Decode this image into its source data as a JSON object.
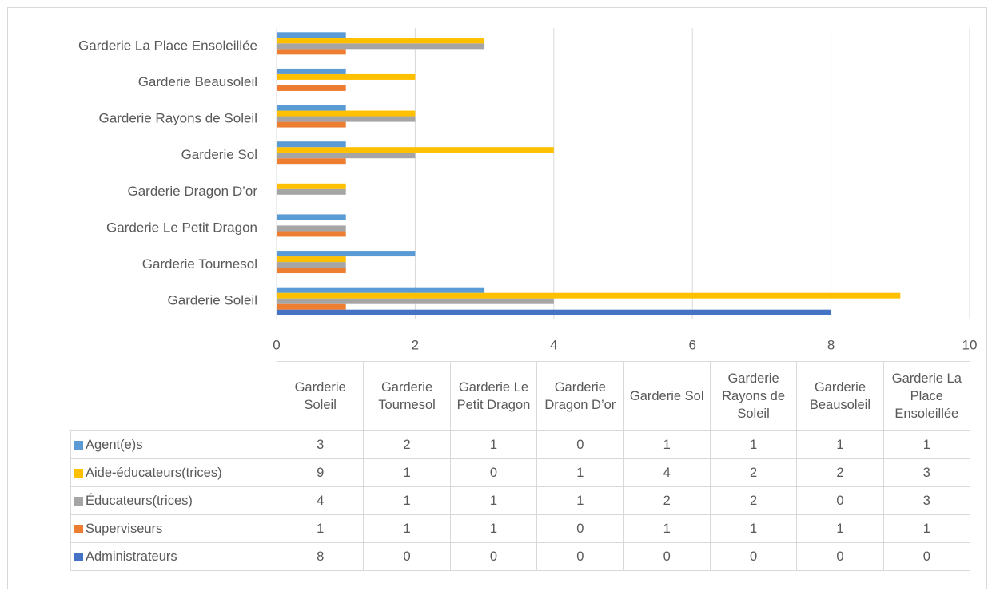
{
  "chart_data": {
    "type": "bar",
    "orientation": "horizontal",
    "categories": [
      "Garderie Soleil",
      "Garderie Tournesol",
      "Garderie Le Petit Dragon",
      "Garderie Dragon D’or",
      "Garderie Sol",
      "Garderie Rayons de Soleil",
      "Garderie Beausoleil",
      "Garderie La Place Ensoleillée"
    ],
    "series": [
      {
        "name": "Administrateurs",
        "color": "#4472c4",
        "values": [
          8,
          0,
          0,
          0,
          0,
          0,
          0,
          0
        ]
      },
      {
        "name": "Superviseurs",
        "color": "#ed7d31",
        "values": [
          1,
          1,
          1,
          0,
          1,
          1,
          1,
          1
        ]
      },
      {
        "name": "Éducateurs(trices)",
        "color": "#a5a5a5",
        "values": [
          4,
          1,
          1,
          1,
          2,
          2,
          0,
          3
        ]
      },
      {
        "name": "Aide-éducateurs(trices)",
        "color": "#ffc000",
        "values": [
          9,
          1,
          0,
          1,
          4,
          2,
          2,
          3
        ]
      },
      {
        "name": "Agent(e)s",
        "color": "#5b9bd5",
        "values": [
          3,
          2,
          1,
          0,
          1,
          1,
          1,
          1
        ]
      }
    ],
    "xlim": [
      0,
      10
    ],
    "xticks": [
      0,
      2,
      4,
      6,
      8,
      10
    ],
    "grid": true,
    "data_table": true
  }
}
